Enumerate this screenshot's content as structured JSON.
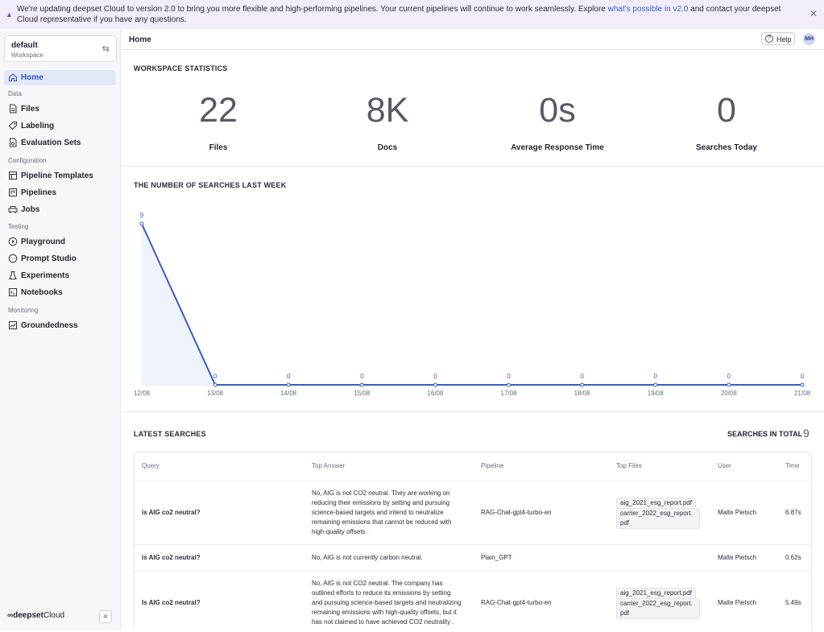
{
  "banner": {
    "text_before": "We're updating deepset Cloud to version 2.0 to bring you more flexible and high-performing pipelines. Your current pipelines will continue to work seamlessly. Explore ",
    "link": "what's possible in v2.0",
    "text_after": " and contact your deepset Cloud representative if you have any questions."
  },
  "workspace": {
    "name": "default",
    "label": "Workspace"
  },
  "sidebar": {
    "home": "Home",
    "sections": [
      "Data",
      "Configuration",
      "Testing",
      "Monitoring"
    ],
    "items": [
      "Files",
      "Labeling",
      "Evaluation Sets",
      "Pipeline Templates",
      "Pipelines",
      "Jobs",
      "Playground",
      "Prompt Studio",
      "Experiments",
      "Notebooks",
      "Groundedness"
    ],
    "brand": "deepset",
    "brand_suffix": "Cloud"
  },
  "topbar": {
    "title": "Home",
    "help": "Help",
    "avatar": "MH"
  },
  "stats": {
    "heading": "WORKSPACE STATISTICS",
    "items": [
      {
        "value": "22",
        "label": "Files"
      },
      {
        "value": "8K",
        "label": "Docs"
      },
      {
        "value": "0s",
        "label": "Average Response Time"
      },
      {
        "value": "0",
        "label": "Searches Today"
      }
    ]
  },
  "chart_heading": "THE NUMBER OF SEARCHES LAST WEEK",
  "chart_data": {
    "type": "area",
    "title": "THE NUMBER OF SEARCHES LAST WEEK",
    "x": [
      "12/08",
      "13/08",
      "14/08",
      "15/08",
      "16/08",
      "17/08",
      "18/08",
      "19/08",
      "20/08",
      "21/08"
    ],
    "values": [
      9,
      0,
      0,
      0,
      0,
      0,
      0,
      0,
      0,
      0
    ],
    "ylim": [
      0,
      9
    ],
    "line_color": "#3b5bc8",
    "fill_color": "#eef3fc"
  },
  "latest": {
    "heading": "LATEST SEARCHES",
    "total_label": "SEARCHES IN TOTAL",
    "total": "9",
    "columns": [
      "Query",
      "Top Answer",
      "Pipeline",
      "Top Files",
      "User",
      "Time"
    ],
    "rows": [
      {
        "query": "is AIG co2 neutral?",
        "answer": [
          "No, AIG is not CO2 neutral. They are working on",
          "reducing their emissions by setting and pursuing",
          "science-based targets and intend to neutralize",
          "remaining emissions that cannot be reduced with",
          "high-quality offsets ."
        ],
        "pipeline": "RAG-Chat-gpt4-turbo-en",
        "files": [
          [
            "aig_2021_esg_report.pdf"
          ],
          [
            "carrier_2022_esg_report.",
            "pdf"
          ]
        ],
        "user": "Malte Pietsch",
        "time": "6.87s"
      },
      {
        "query": "is AIG co2 neutral?",
        "answer": [
          "No, AIG is not currently carbon neutral."
        ],
        "pipeline": "Plain_GPT",
        "files": [],
        "user": "Malte Pietsch",
        "time": "0.62s"
      },
      {
        "query": "Is AIG co2 neutral?",
        "answer": [
          "No, AIG is not CO2 neutral. The company has",
          "outlined efforts to reduce its emissions by setting",
          "and pursuing science-based targets and neutralizing",
          "remaining emissions with high-quality offsets, but it",
          "has not claimed to have achieved CO2 neutrality ."
        ],
        "pipeline": "RAG-Chat-gpt4-turbo-en",
        "files": [
          [
            "aig_2021_esg_report.pdf"
          ],
          [
            "carrier_2022_esg_report.",
            "pdf"
          ]
        ],
        "user": "Malte Pietsch",
        "time": "5.49s"
      }
    ]
  }
}
